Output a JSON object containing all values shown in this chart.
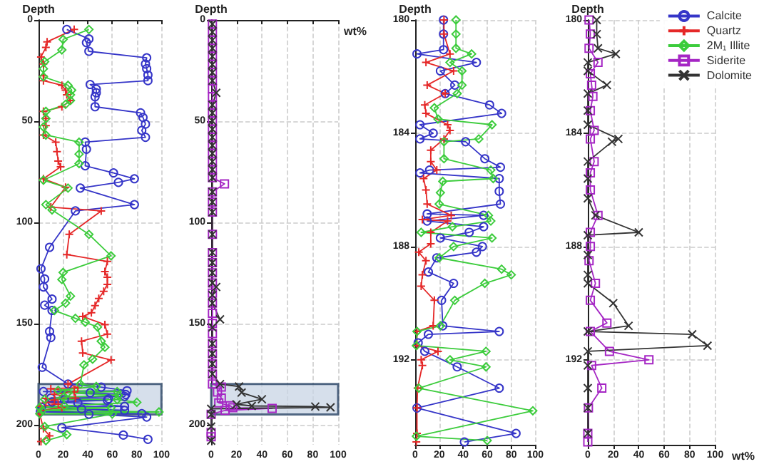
{
  "chart_data": [
    {
      "type": "line",
      "ylabel": "Depth",
      "xlim": [
        0,
        100
      ],
      "xticks": [
        0,
        20,
        40,
        60,
        80,
        100
      ],
      "ylim": [
        210,
        0
      ],
      "yticks": [
        0,
        50,
        100,
        150,
        200
      ],
      "grid": true,
      "legend": false,
      "bands": [
        {
          "axis": "y",
          "from": 180,
          "to": 195,
          "color": "#c8d4e4"
        }
      ],
      "series": [
        {
          "color": "#3535c8",
          "marker": "circle",
          "x": [
            23,
            41,
            39,
            41,
            88,
            87,
            88,
            89,
            89,
            42,
            47,
            47,
            46,
            46,
            83,
            85,
            87,
            84,
            87,
            38,
            39,
            38,
            61,
            78,
            65,
            34,
            78,
            30,
            9,
            2,
            5,
            4,
            11,
            5,
            11,
            9,
            10,
            3,
            24,
            51,
            72,
            4,
            42,
            71,
            70,
            10,
            57,
            21,
            56,
            11,
            32,
            70,
            2.5,
            35,
            70,
            1.5,
            84,
            41,
            88,
            19,
            69,
            89
          ],
          "values": [
            4.7,
            9.4,
            11.2,
            15.5,
            18.7,
            21.8,
            24.1,
            27.2,
            30,
            31.9,
            34.2,
            36,
            38,
            42.9,
            45.9,
            48.2,
            51.5,
            54.6,
            58,
            60.4,
            63.9,
            72.1,
            75.6,
            78.5,
            80.3,
            83.1,
            91.3,
            94.4,
            112.4,
            123,
            128,
            132,
            138,
            141,
            143.6,
            154,
            157,
            171.7,
            180,
            181.5,
            183.3,
            183.7,
            184.3,
            185.2,
            186.1,
            186.9,
            187.3,
            187.7,
            188,
            188.9,
            189.3,
            191,
            191.4,
            192.3,
            193,
            193.7,
            194.6,
            194.9,
            196.3,
            201.6,
            205.2,
            207.3
          ]
        },
        {
          "color": "#e52828",
          "marker": "plus",
          "x": [
            29,
            7,
            6,
            2,
            4,
            4,
            4,
            19,
            22,
            23,
            26,
            19,
            4,
            6,
            6,
            4,
            14,
            15,
            16,
            18,
            4,
            22,
            10,
            51,
            25,
            23,
            56,
            54,
            56,
            56,
            53,
            49,
            46,
            43,
            36,
            54,
            56,
            35,
            36,
            59,
            24,
            32,
            10,
            29,
            13,
            30,
            6,
            13,
            6,
            16,
            1.5,
            19,
            2,
            1,
            4,
            9,
            2
          ],
          "values": [
            4.7,
            10.8,
            13.6,
            18.3,
            21.8,
            27.6,
            30,
            32.3,
            34.7,
            37,
            39.8,
            42.9,
            45.2,
            48.7,
            52.2,
            56.9,
            60.4,
            65.1,
            69.8,
            72.6,
            78.5,
            82.7,
            92.5,
            94.4,
            106,
            116,
            119.4,
            124.4,
            127.2,
            130.7,
            134.2,
            137.7,
            141.2,
            144.7,
            146.6,
            150.6,
            155.3,
            158.8,
            164.6,
            168.1,
            180,
            181.8,
            182.3,
            183.9,
            185,
            186.9,
            187.1,
            187.9,
            189,
            189.9,
            191,
            191.7,
            193,
            194.9,
            202,
            205.6,
            208.4
          ]
        },
        {
          "color": "#3ccc3c",
          "marker": "diamond",
          "x": [
            41,
            20,
            19,
            5,
            4,
            4,
            24,
            27,
            26,
            26,
            22,
            6,
            6,
            4,
            6,
            33,
            33,
            33,
            4,
            24,
            6,
            11,
            41,
            59,
            20,
            19,
            26,
            22,
            13,
            30,
            38,
            48,
            51,
            54,
            44,
            37,
            34,
            47,
            16,
            64,
            24,
            65,
            20,
            5,
            64,
            80,
            21,
            1,
            59,
            3,
            98,
            1,
            60,
            5,
            23,
            6
          ],
          "values": [
            4.7,
            9.6,
            14.8,
            20.6,
            24.1,
            28.1,
            32.3,
            34.7,
            37,
            39.8,
            41.7,
            45.2,
            48.7,
            52.9,
            56.9,
            60.4,
            66.3,
            71,
            79.2,
            83.1,
            91.3,
            93.9,
            106,
            116.6,
            124.8,
            128.3,
            136.5,
            140,
            143.6,
            147.5,
            149.4,
            151.8,
            158.8,
            161.8,
            167.7,
            170.5,
            180,
            181.2,
            183.1,
            183.7,
            184.3,
            185.6,
            186.5,
            187.5,
            187.7,
            189,
            190.8,
            191.5,
            191.7,
            193,
            193.8,
            194.7,
            194.8,
            201,
            205,
            208
          ]
        }
      ]
    },
    {
      "type": "line",
      "ylabel": "Depth",
      "xlabel": "wt%",
      "xlim": [
        0,
        100
      ],
      "xticks": [
        0,
        20,
        40,
        60,
        80,
        100
      ],
      "ylim": [
        210,
        0
      ],
      "yticks": [
        0,
        50,
        100,
        150,
        200
      ],
      "grid": true,
      "legend": false,
      "bands": [
        {
          "axis": "y",
          "from": 180,
          "to": 195,
          "color": "#c8d4e4"
        }
      ],
      "series": [
        {
          "color": "#a526c4",
          "marker": "square",
          "x": [
            1,
            1,
            1,
            1,
            1,
            1,
            1,
            1,
            1,
            1,
            1,
            1,
            1,
            1,
            1,
            1,
            1,
            1,
            1,
            1,
            10.5,
            1,
            1,
            1,
            1,
            1,
            1,
            1,
            1,
            1,
            1,
            1,
            1,
            1,
            1,
            1,
            1,
            1,
            1,
            8,
            5,
            8,
            6,
            15,
            17,
            48,
            11,
            0,
            0,
            0
          ],
          "values": [
            2,
            6,
            10,
            14,
            18,
            22,
            26,
            30,
            34,
            38,
            42,
            46,
            50,
            54,
            58,
            62,
            66,
            70,
            74,
            78,
            81,
            85,
            90,
            95,
            106,
            115,
            120,
            125,
            130,
            135,
            140,
            145,
            150,
            155,
            160,
            165,
            170,
            175,
            180,
            181.5,
            183.9,
            186.9,
            189.3,
            190.7,
            191.7,
            192,
            193,
            194.9,
            204,
            206
          ]
        },
        {
          "color": "#333333",
          "marker": "cross",
          "x": [
            1,
            1,
            1,
            1,
            1,
            1,
            1,
            1,
            4,
            1,
            1,
            1,
            1,
            1,
            1,
            1,
            1,
            1,
            1,
            1,
            1,
            1,
            1,
            1,
            1,
            1,
            1,
            4,
            1,
            1,
            7,
            1,
            1,
            1,
            1,
            1,
            7,
            22,
            24,
            40,
            20,
            32,
            82,
            94,
            0,
            0,
            0,
            0
          ],
          "values": [
            2,
            6,
            10,
            14,
            18,
            22,
            26,
            30,
            36,
            42,
            46,
            50,
            54,
            58,
            62,
            66,
            70,
            74,
            78,
            85,
            90,
            95,
            106,
            115,
            120,
            125,
            130,
            132,
            136,
            140,
            148,
            152,
            160,
            165,
            170,
            175,
            180,
            181.2,
            184.2,
            187.5,
            190,
            190.8,
            191.1,
            191.5,
            192.2,
            195,
            201,
            208
          ]
        }
      ]
    },
    {
      "type": "line",
      "ylabel": "Depth",
      "xlim": [
        0,
        100
      ],
      "xticks": [
        0,
        20,
        40,
        60,
        80,
        100
      ],
      "ylim": [
        195,
        180
      ],
      "yticks": [
        180,
        184,
        188,
        192
      ],
      "grid": true,
      "legend": false,
      "series": [
        {
          "color": "#3535c8",
          "marker": "circle",
          "x": [
            23.6,
            23.6,
            23.6,
            1.5,
            51,
            21,
            33,
            25,
            62,
            72,
            4,
            15,
            4,
            42,
            58,
            71,
            12,
            4,
            70,
            70,
            71,
            10,
            57,
            10,
            57,
            45,
            21,
            56,
            51,
            18,
            11,
            32,
            22,
            23,
            70,
            11,
            2.5,
            8,
            35,
            70,
            1.5,
            84,
            41
          ],
          "values": [
            180,
            180.5,
            181.05,
            181.2,
            181.5,
            181.8,
            182.3,
            182.6,
            183,
            183.3,
            183.7,
            184,
            184.2,
            184.3,
            184.9,
            185.2,
            185.3,
            185.4,
            185.6,
            186.05,
            186.5,
            186.85,
            186.9,
            187.1,
            187.3,
            187.5,
            187.7,
            188,
            188.2,
            188.4,
            188.9,
            189.3,
            189.9,
            190.8,
            191,
            191.1,
            191.4,
            191.7,
            192.25,
            193,
            193.7,
            194.6,
            194.9
          ]
        },
        {
          "color": "#e52828",
          "marker": "plus",
          "x": [
            24,
            24,
            29,
            9,
            32,
            10,
            25,
            8,
            9,
            27,
            29,
            24,
            13,
            13,
            18,
            7,
            9,
            10,
            30,
            6,
            27,
            13,
            13,
            3,
            9,
            6,
            5,
            16,
            15,
            1.5,
            1.5,
            19,
            5,
            6,
            2,
            1.5,
            1.5,
            1
          ],
          "values": [
            180,
            180.5,
            181.2,
            181.5,
            181.8,
            182.3,
            182.6,
            183,
            183.3,
            183.7,
            183.9,
            184.2,
            184.6,
            185,
            185.3,
            185.6,
            186,
            186.5,
            186.9,
            187.05,
            187.1,
            187.5,
            187.9,
            188.2,
            188.5,
            189,
            189.4,
            189.9,
            190.8,
            191,
            191.5,
            191.7,
            192,
            192.2,
            193,
            193.7,
            194.6,
            194.9
          ]
        },
        {
          "color": "#3ccc3c",
          "marker": "diamond",
          "x": [
            34,
            34,
            34,
            47,
            29,
            39,
            39,
            35,
            16,
            19,
            64,
            53,
            24,
            24,
            63,
            65,
            23,
            21,
            20,
            61,
            63,
            31,
            5,
            64,
            32,
            20,
            72,
            80,
            58,
            33,
            21,
            1.5,
            1,
            59,
            29,
            59,
            3,
            98,
            1,
            60
          ],
          "values": [
            180,
            180.5,
            181,
            181.2,
            181.5,
            181.8,
            182.3,
            182.6,
            183.1,
            183.5,
            183.7,
            184.2,
            184.3,
            184.9,
            185.3,
            185.6,
            185.7,
            186.1,
            186.5,
            186.9,
            187.1,
            187.3,
            187.5,
            187.7,
            188,
            188.4,
            188.8,
            189,
            189.3,
            189.9,
            190.8,
            191,
            191.5,
            191.7,
            192,
            192.25,
            193,
            193.8,
            194.7,
            194.85
          ]
        }
      ]
    },
    {
      "type": "line",
      "ylabel": "Depth",
      "xlabel": "wt%",
      "xlim": [
        0,
        100
      ],
      "xticks": [
        0,
        20,
        40,
        60,
        80,
        100
      ],
      "ylim": [
        195,
        180
      ],
      "yticks": [
        180,
        184,
        188,
        192
      ],
      "grid": true,
      "legend": "top right",
      "series": [
        {
          "name": "Calcite",
          "color": "#3535c8",
          "marker": "circle"
        },
        {
          "name": "Quartz",
          "color": "#e52828",
          "marker": "plus"
        },
        {
          "name": "2M₁ Illite",
          "color": "#3ccc3c",
          "marker": "diamond"
        },
        {
          "name": "Siderite",
          "color": "#a526c4",
          "marker": "square",
          "x": [
            1,
            2,
            1,
            8,
            2,
            3,
            4,
            2,
            5,
            2,
            5,
            2,
            2,
            8,
            2,
            2,
            1,
            6,
            2,
            15,
            2,
            17,
            48,
            3,
            11,
            0.5,
            0,
            0
          ],
          "values": [
            180,
            180.5,
            181,
            181.5,
            181.9,
            182.3,
            182.7,
            183.2,
            183.9,
            184.2,
            185,
            185.4,
            186,
            186.9,
            187.5,
            188,
            188.5,
            189.3,
            189.9,
            190.7,
            191,
            191.7,
            192,
            192.2,
            193,
            193.7,
            194.6,
            194.9
          ]
        },
        {
          "name": "Dolomite",
          "color": "#333333",
          "marker": "cross",
          "x": [
            7,
            7,
            8,
            22,
            0,
            0,
            15,
            0,
            0,
            0,
            24,
            19,
            0,
            0,
            0,
            6,
            40,
            0,
            0,
            0,
            0,
            20,
            32,
            0,
            82,
            94,
            0,
            0,
            0,
            0,
            0
          ],
          "values": [
            180,
            180.5,
            181,
            181.2,
            181.5,
            181.8,
            182.3,
            182.6,
            183.2,
            183.7,
            184.2,
            184.3,
            185,
            185.6,
            186.3,
            186.9,
            187.5,
            187.6,
            188.3,
            189,
            189.3,
            190,
            190.8,
            191,
            191.1,
            191.5,
            191.7,
            192.2,
            193,
            193.7,
            194.6
          ]
        }
      ]
    }
  ]
}
